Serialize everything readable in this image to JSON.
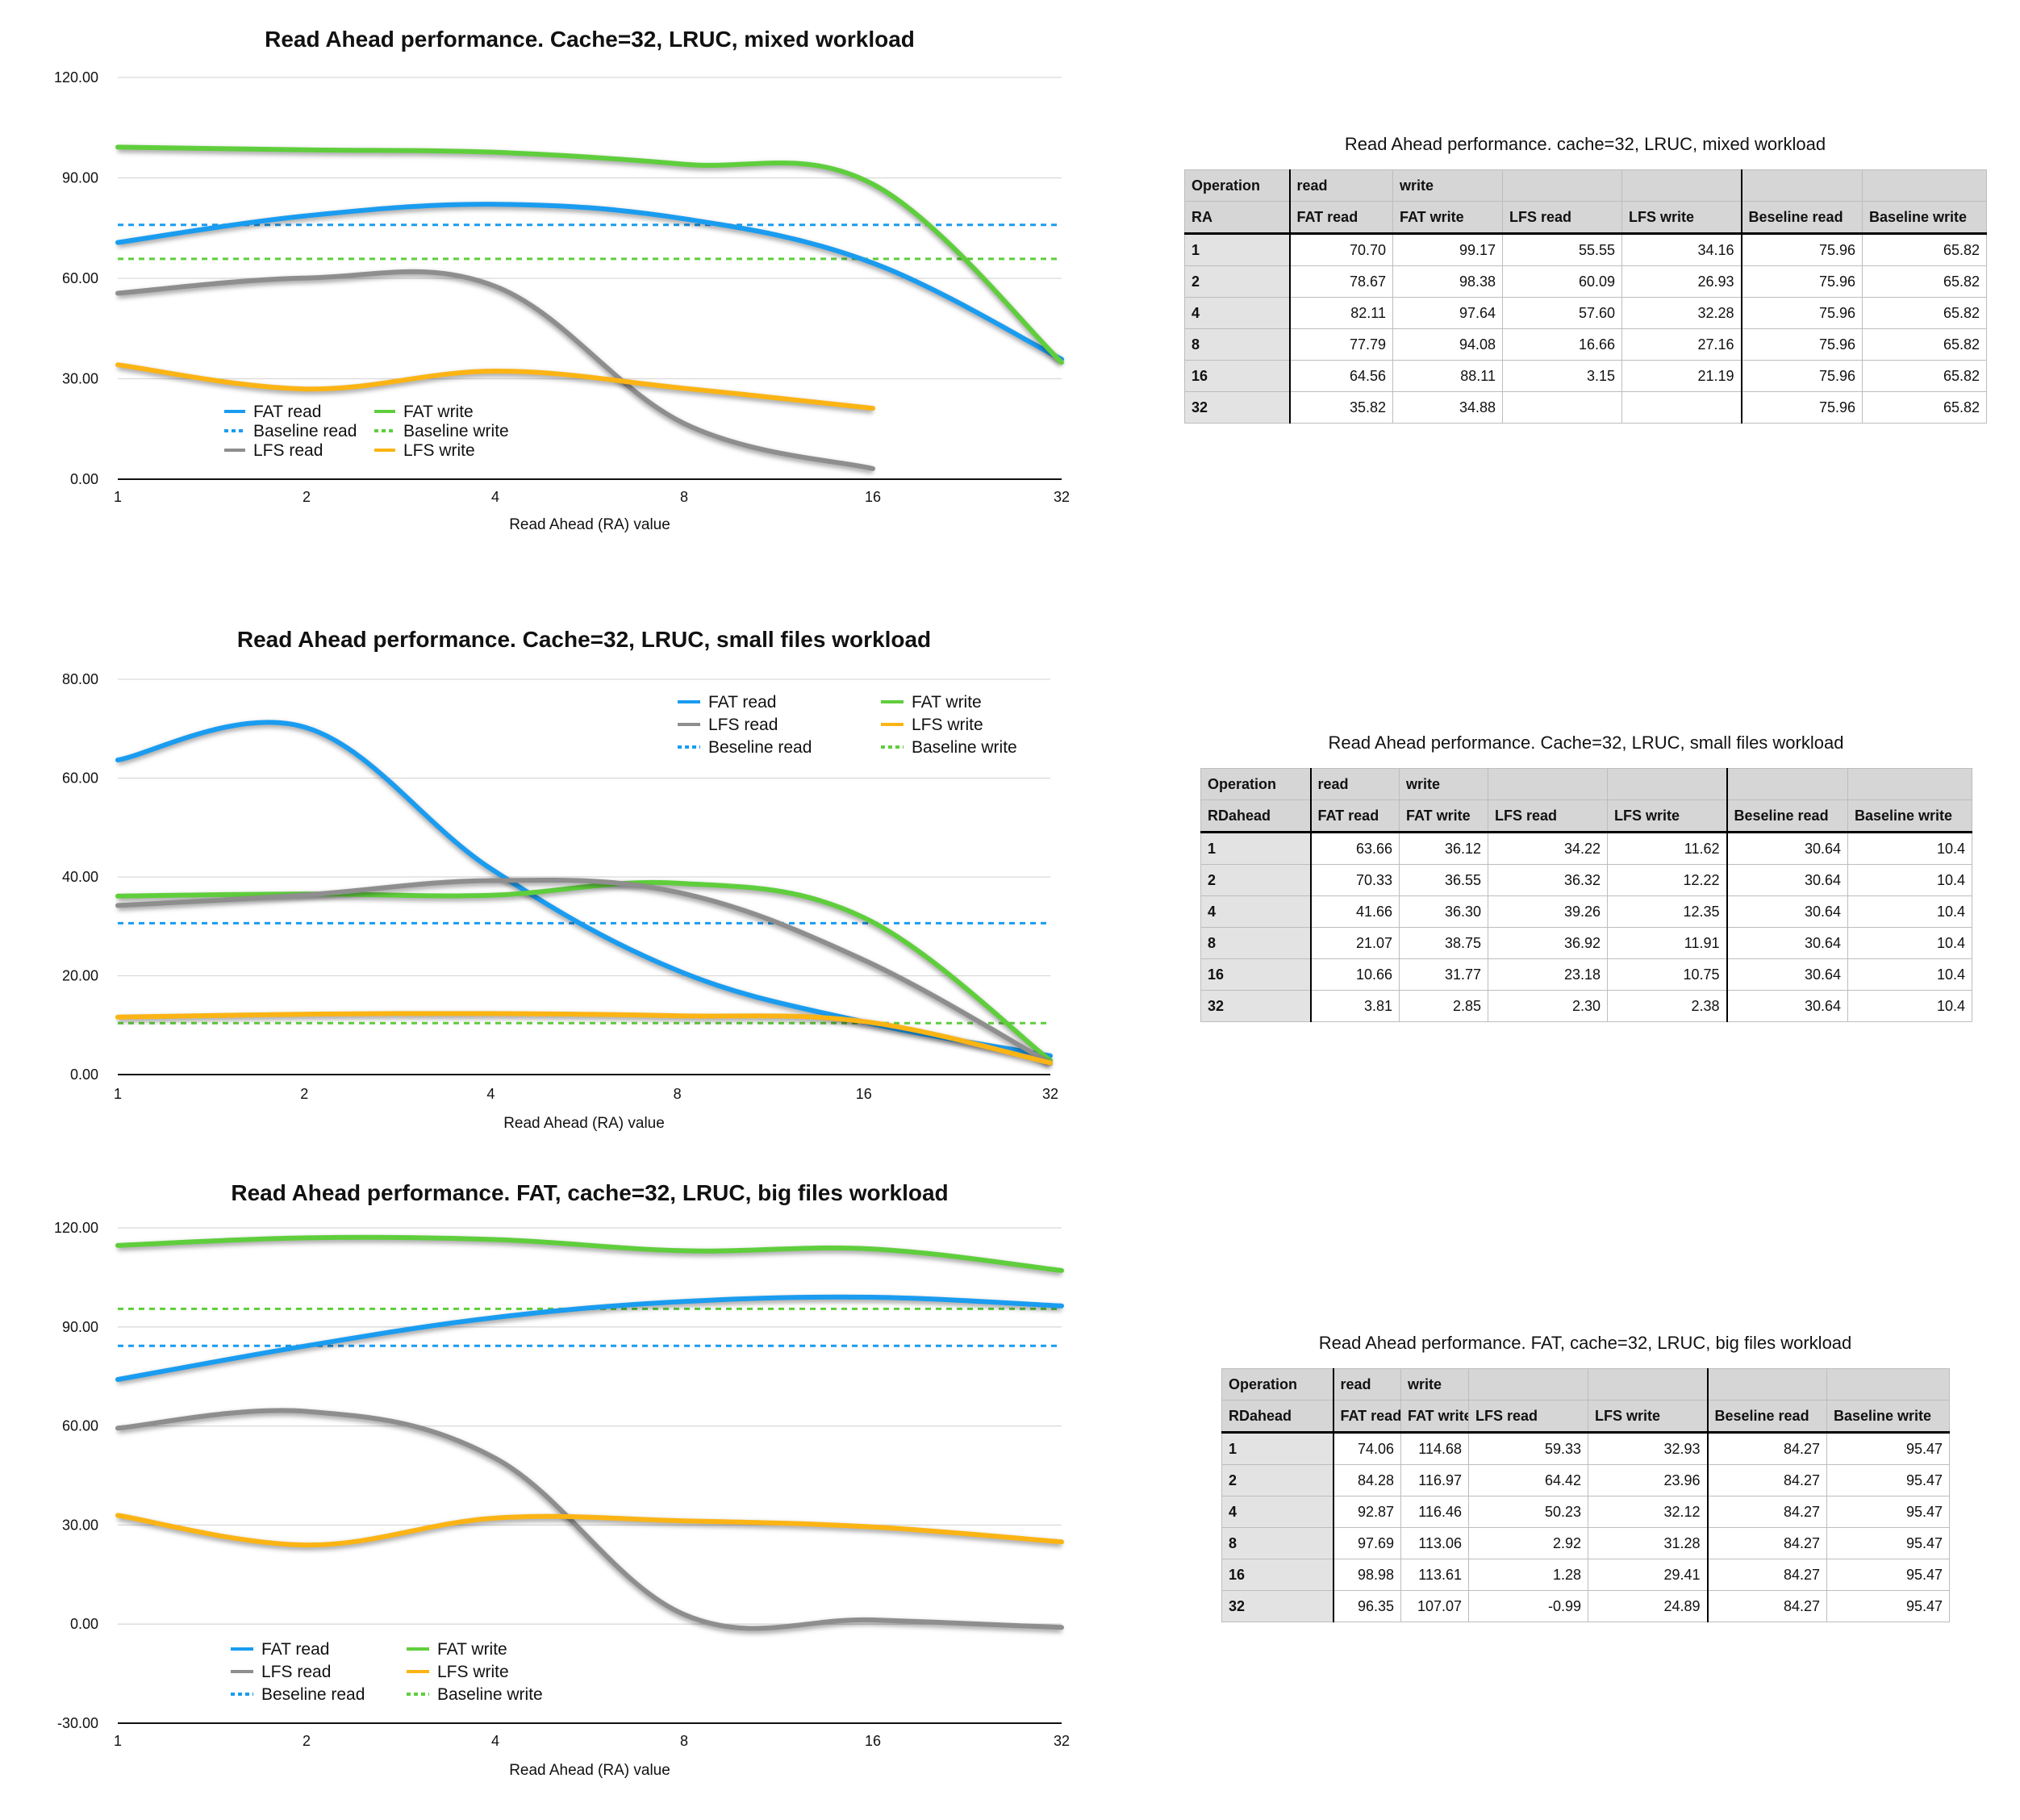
{
  "chart_data": [
    {
      "type": "line",
      "title": "Read Ahead performance. Cache=32, LRUC, mixed workload",
      "xlabel": "Read Ahead (RA) value",
      "categories": [
        "1",
        "2",
        "4",
        "8",
        "16",
        "32"
      ],
      "y_ticks": [
        "120.00",
        "90.00",
        "60.00",
        "30.00",
        "0.00"
      ],
      "ylim": [
        0,
        120
      ],
      "legend_position": "bottom-left",
      "legend": [
        "FAT read",
        "FAT write",
        "Baseline read",
        "Baseline write",
        "LFS read",
        "LFS write"
      ],
      "series": [
        {
          "name": "FAT read",
          "color": "#1a9cf0",
          "style": "solid",
          "values": [
            70.7,
            78.67,
            82.11,
            77.79,
            64.56,
            35.82
          ]
        },
        {
          "name": "FAT write",
          "color": "#5fce3c",
          "style": "solid",
          "values": [
            99.17,
            98.38,
            97.64,
            94.08,
            88.11,
            34.88
          ]
        },
        {
          "name": "LFS read",
          "color": "#8e8e8e",
          "style": "solid",
          "values": [
            55.55,
            60.09,
            57.6,
            16.66,
            3.15,
            null
          ]
        },
        {
          "name": "LFS write",
          "color": "#fbb414",
          "style": "solid",
          "values": [
            34.16,
            26.93,
            32.28,
            27.16,
            21.19,
            null
          ]
        },
        {
          "name": "Baseline read",
          "color": "#1a9cf0",
          "style": "dashed",
          "values": [
            75.96,
            75.96,
            75.96,
            75.96,
            75.96,
            75.96
          ]
        },
        {
          "name": "Baseline write",
          "color": "#5fce3c",
          "style": "dashed",
          "values": [
            65.82,
            65.82,
            65.82,
            65.82,
            65.82,
            65.82
          ]
        }
      ]
    },
    {
      "type": "line",
      "title": "Read Ahead performance. Cache=32, LRUC, small files workload",
      "xlabel": "Read Ahead (RA) value",
      "categories": [
        "1",
        "2",
        "4",
        "8",
        "16",
        "32"
      ],
      "y_ticks": [
        "80.00",
        "60.00",
        "40.00",
        "20.00",
        "0.00"
      ],
      "ylim": [
        0,
        80
      ],
      "legend_position": "top-right",
      "legend": [
        "FAT read",
        "FAT write",
        "LFS read",
        "LFS write",
        "Beseline read",
        "Baseline write"
      ],
      "series": [
        {
          "name": "FAT read",
          "color": "#1a9cf0",
          "style": "solid",
          "values": [
            63.66,
            70.33,
            41.66,
            21.07,
            10.66,
            3.81
          ]
        },
        {
          "name": "FAT write",
          "color": "#5fce3c",
          "style": "solid",
          "values": [
            36.12,
            36.55,
            36.3,
            38.75,
            31.77,
            2.85
          ]
        },
        {
          "name": "LFS read",
          "color": "#8e8e8e",
          "style": "solid",
          "values": [
            34.22,
            36.32,
            39.26,
            36.92,
            23.18,
            2.3
          ]
        },
        {
          "name": "LFS write",
          "color": "#fbb414",
          "style": "solid",
          "values": [
            11.62,
            12.22,
            12.35,
            11.91,
            10.75,
            2.38
          ]
        },
        {
          "name": "Beseline read",
          "color": "#1a9cf0",
          "style": "dashed",
          "values": [
            30.64,
            30.64,
            30.64,
            30.64,
            30.64,
            30.64
          ]
        },
        {
          "name": "Baseline write",
          "color": "#5fce3c",
          "style": "dashed",
          "values": [
            10.4,
            10.4,
            10.4,
            10.4,
            10.4,
            10.4
          ]
        }
      ]
    },
    {
      "type": "line",
      "title": "Read Ahead performance. FAT, cache=32, LRUC, big files workload",
      "xlabel": "Read Ahead (RA) value",
      "categories": [
        "1",
        "2",
        "4",
        "8",
        "16",
        "32"
      ],
      "y_ticks": [
        "120.00",
        "90.00",
        "60.00",
        "30.00",
        "0.00",
        "-30.00"
      ],
      "ylim": [
        -30,
        120
      ],
      "legend_position": "bottom-left",
      "legend": [
        "FAT read",
        "FAT write",
        "LFS read",
        "LFS write",
        "Beseline read",
        "Baseline write"
      ],
      "series": [
        {
          "name": "FAT read",
          "color": "#1a9cf0",
          "style": "solid",
          "values": [
            74.06,
            84.28,
            92.87,
            97.69,
            98.98,
            96.35
          ]
        },
        {
          "name": "FAT write",
          "color": "#5fce3c",
          "style": "solid",
          "values": [
            114.68,
            116.97,
            116.46,
            113.06,
            113.61,
            107.07
          ]
        },
        {
          "name": "LFS read",
          "color": "#8e8e8e",
          "style": "solid",
          "values": [
            59.33,
            64.42,
            50.23,
            2.92,
            1.28,
            -0.99
          ]
        },
        {
          "name": "LFS write",
          "color": "#fbb414",
          "style": "solid",
          "values": [
            32.93,
            23.96,
            32.12,
            31.28,
            29.41,
            24.89
          ]
        },
        {
          "name": "Beseline read",
          "color": "#1a9cf0",
          "style": "dashed",
          "values": [
            84.27,
            84.27,
            84.27,
            84.27,
            84.27,
            84.27
          ]
        },
        {
          "name": "Baseline write",
          "color": "#5fce3c",
          "style": "dashed",
          "values": [
            95.47,
            95.47,
            95.47,
            95.47,
            95.47,
            95.47
          ]
        }
      ]
    }
  ],
  "tables": [
    {
      "title": "Read Ahead performance. cache=32, LRUC, mixed workload",
      "header1": [
        "Operation",
        "read",
        "write",
        "",
        "",
        "",
        ""
      ],
      "header2": [
        "RA",
        "FAT read",
        "FAT write",
        "LFS read",
        "LFS write",
        "Beseline read",
        "Baseline write"
      ],
      "rows": [
        [
          "1",
          "70.70",
          "99.17",
          "55.55",
          "34.16",
          "75.96",
          "65.82"
        ],
        [
          "2",
          "78.67",
          "98.38",
          "60.09",
          "26.93",
          "75.96",
          "65.82"
        ],
        [
          "4",
          "82.11",
          "97.64",
          "57.60",
          "32.28",
          "75.96",
          "65.82"
        ],
        [
          "8",
          "77.79",
          "94.08",
          "16.66",
          "27.16",
          "75.96",
          "65.82"
        ],
        [
          "16",
          "64.56",
          "88.11",
          "3.15",
          "21.19",
          "75.96",
          "65.82"
        ],
        [
          "32",
          "35.82",
          "34.88",
          "",
          "",
          "75.96",
          "65.82"
        ]
      ]
    },
    {
      "title": "Read Ahead performance. Cache=32, LRUC, small files workload",
      "header1": [
        "Operation",
        "read",
        "write",
        "",
        "",
        "",
        ""
      ],
      "header2": [
        "RDahead",
        "FAT read",
        "FAT write",
        "LFS read",
        "LFS write",
        "Beseline read",
        "Baseline write"
      ],
      "rows": [
        [
          "1",
          "63.66",
          "36.12",
          "34.22",
          "11.62",
          "30.64",
          "10.4"
        ],
        [
          "2",
          "70.33",
          "36.55",
          "36.32",
          "12.22",
          "30.64",
          "10.4"
        ],
        [
          "4",
          "41.66",
          "36.30",
          "39.26",
          "12.35",
          "30.64",
          "10.4"
        ],
        [
          "8",
          "21.07",
          "38.75",
          "36.92",
          "11.91",
          "30.64",
          "10.4"
        ],
        [
          "16",
          "10.66",
          "31.77",
          "23.18",
          "10.75",
          "30.64",
          "10.4"
        ],
        [
          "32",
          "3.81",
          "2.85",
          "2.30",
          "2.38",
          "30.64",
          "10.4"
        ]
      ]
    },
    {
      "title": "Read Ahead performance. FAT, cache=32, LRUC, big files workload",
      "header1": [
        "Operation",
        "read",
        "write",
        "",
        "",
        "",
        ""
      ],
      "header2": [
        "RDahead",
        "FAT read",
        "FAT write",
        "LFS read",
        "LFS write",
        "Beseline read",
        "Baseline write"
      ],
      "rows": [
        [
          "1",
          "74.06",
          "114.68",
          "59.33",
          "32.93",
          "84.27",
          "95.47"
        ],
        [
          "2",
          "84.28",
          "116.97",
          "64.42",
          "23.96",
          "84.27",
          "95.47"
        ],
        [
          "4",
          "92.87",
          "116.46",
          "50.23",
          "32.12",
          "84.27",
          "95.47"
        ],
        [
          "8",
          "97.69",
          "113.06",
          "2.92",
          "31.28",
          "84.27",
          "95.47"
        ],
        [
          "16",
          "98.98",
          "113.61",
          "1.28",
          "29.41",
          "84.27",
          "95.47"
        ],
        [
          "32",
          "96.35",
          "107.07",
          "-0.99",
          "24.89",
          "84.27",
          "95.47"
        ]
      ]
    }
  ]
}
